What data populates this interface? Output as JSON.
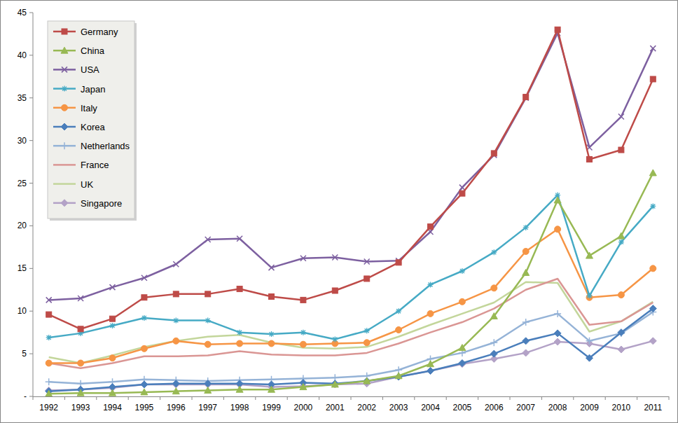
{
  "chart_data": {
    "type": "line",
    "categories": [
      "1992",
      "1993",
      "1994",
      "1995",
      "1996",
      "1997",
      "1998",
      "1999",
      "2000",
      "2001",
      "2002",
      "2003",
      "2004",
      "2005",
      "2006",
      "2007",
      "2008",
      "2009",
      "2010",
      "2011"
    ],
    "series": [
      {
        "name": "Germany",
        "color": "#be4b48",
        "marker": "square",
        "values": [
          9.6,
          7.9,
          9.1,
          11.6,
          12.0,
          12.0,
          12.6,
          11.7,
          11.3,
          12.4,
          13.8,
          15.7,
          19.9,
          23.8,
          28.5,
          35.1,
          43.0,
          27.8,
          28.9,
          37.2
        ]
      },
      {
        "name": "China",
        "color": "#98b954",
        "marker": "triangle",
        "values": [
          0.3,
          0.4,
          0.4,
          0.5,
          0.6,
          0.7,
          0.8,
          0.8,
          1.1,
          1.4,
          1.8,
          2.4,
          3.8,
          5.7,
          9.4,
          14.5,
          23.0,
          16.5,
          18.8,
          26.2
        ]
      },
      {
        "name": "USA",
        "color": "#7d60a0",
        "marker": "x",
        "values": [
          11.3,
          11.5,
          12.8,
          13.9,
          15.5,
          18.4,
          18.5,
          15.1,
          16.2,
          16.3,
          15.8,
          15.9,
          19.3,
          24.5,
          28.3,
          35.0,
          42.6,
          29.2,
          32.8,
          40.8
        ]
      },
      {
        "name": "Japan",
        "color": "#46aac5",
        "marker": "star",
        "values": [
          6.9,
          7.4,
          8.3,
          9.2,
          8.9,
          8.9,
          7.5,
          7.3,
          7.5,
          6.7,
          7.7,
          10.0,
          13.1,
          14.7,
          16.9,
          19.8,
          23.6,
          11.8,
          18.1,
          22.3
        ]
      },
      {
        "name": "Italy",
        "color": "#f69545",
        "marker": "circle",
        "values": [
          3.9,
          3.9,
          4.5,
          5.6,
          6.5,
          6.1,
          6.2,
          6.2,
          6.1,
          6.2,
          6.3,
          7.8,
          9.7,
          11.1,
          12.7,
          17.0,
          19.6,
          11.6,
          11.9,
          15.0
        ]
      },
      {
        "name": "Korea",
        "color": "#4a7ebb",
        "marker": "diamond",
        "values": [
          0.6,
          0.8,
          1.1,
          1.4,
          1.5,
          1.5,
          1.5,
          1.4,
          1.6,
          1.5,
          1.8,
          2.3,
          3.0,
          3.9,
          5.0,
          6.5,
          7.4,
          4.5,
          7.5,
          10.3
        ]
      },
      {
        "name": "Netherlands",
        "color": "#95b3d7",
        "marker": "plus",
        "values": [
          1.7,
          1.5,
          1.7,
          2.0,
          1.9,
          1.8,
          1.9,
          2.0,
          2.1,
          2.2,
          2.4,
          3.1,
          4.4,
          5.1,
          6.3,
          8.7,
          9.7,
          6.5,
          7.4,
          9.9
        ]
      },
      {
        "name": "France",
        "color": "#da9694",
        "marker": "none",
        "values": [
          3.9,
          3.3,
          3.9,
          4.7,
          4.7,
          4.8,
          5.3,
          4.9,
          4.8,
          4.8,
          5.1,
          6.2,
          7.5,
          8.7,
          10.3,
          12.5,
          13.8,
          8.4,
          8.8,
          11.0
        ]
      },
      {
        "name": "UK",
        "color": "#c3d69b",
        "marker": "none",
        "values": [
          4.6,
          3.9,
          4.8,
          5.8,
          6.5,
          7.0,
          7.2,
          6.3,
          5.7,
          5.6,
          5.8,
          7.0,
          8.4,
          9.7,
          11.0,
          13.4,
          13.3,
          7.6,
          8.8,
          11.1
        ]
      },
      {
        "name": "Singapore",
        "color": "#b3a2c7",
        "marker": "diamond",
        "values": [
          0.7,
          0.8,
          1.0,
          1.4,
          1.4,
          1.4,
          1.4,
          1.1,
          1.2,
          1.4,
          1.5,
          2.3,
          3.0,
          3.8,
          4.4,
          5.1,
          6.4,
          6.2,
          5.5,
          6.5
        ]
      }
    ],
    "ylim": [
      0,
      45
    ],
    "yticks": [
      {
        "value": 0,
        "label": "-"
      },
      5,
      10,
      15,
      20,
      25,
      30,
      35,
      40,
      45
    ],
    "grid": false,
    "legend": "top-left"
  }
}
